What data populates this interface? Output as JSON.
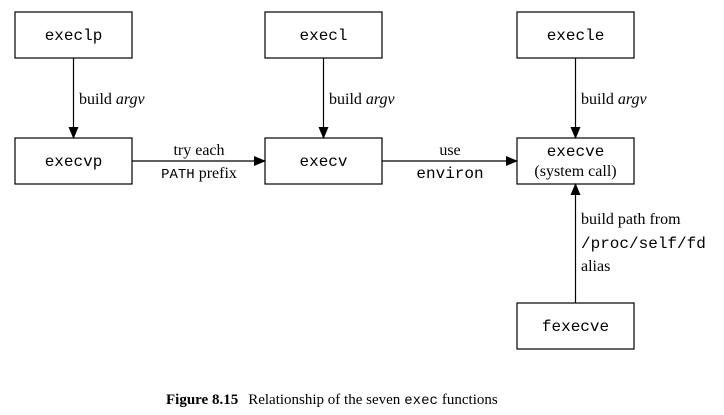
{
  "boxes": {
    "execlp": "execlp",
    "execl": "execl",
    "execle": "execle",
    "execvp": "execvp",
    "execv": "execv",
    "execve": "execve",
    "execve_sub": "(system call)",
    "fexecve": "fexecve"
  },
  "labels": {
    "build": "build",
    "argv": "argv",
    "try_each": "try each",
    "path_word": "PATH",
    "prefix": "prefix",
    "use": "use",
    "environ": "environ",
    "build_path_from": "build path from",
    "proc_path": "/proc/self/fd",
    "alias": "alias"
  },
  "caption": {
    "figure": "Figure 8.15",
    "text_before": "Relationship of the seven",
    "exec_word": "exec",
    "text_after": "functions"
  }
}
